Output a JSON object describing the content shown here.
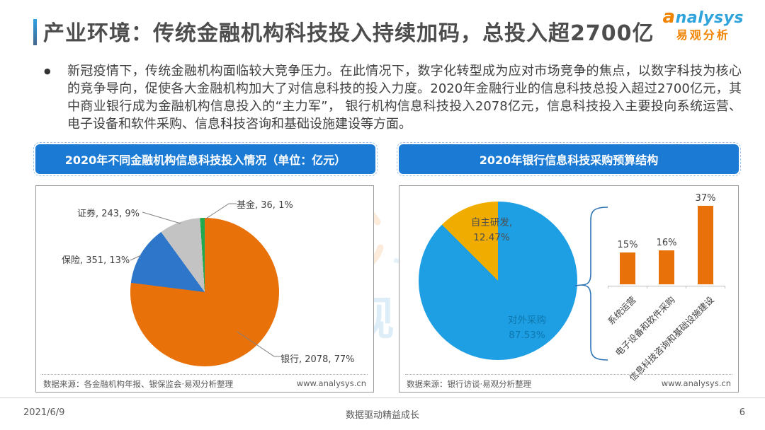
{
  "page": {
    "title": "产业环境：传统金融机构科技投入持续加码，总投入超2700亿",
    "bullet": "●",
    "paragraph": "新冠疫情下，传统金融机构面临较大竞争压力。在此情况下，数字化转型成为应对市场竞争的焦点，以数字科技为核心的竞争导向，促使各大金融机构加大了对信息科技的投入力度。2020年金融行业的信息科技总投入超过2700亿元，其中商业银行成为金融机构信息投入的“主力军”， 银行机构信息科技投入2078亿元，信息科技投入主要投向系统运营、电子设备和软件采购、信息科技咨询和基础设施建设等方面。",
    "logo": {
      "brand": "analysys",
      "brand_cn": "易观分析"
    },
    "watermarks": {
      "cn": "易观",
      "latin": "ysys"
    },
    "footer": {
      "date": "2021/6/9",
      "slogan": "数据驱动精益成长",
      "page_number": "6"
    }
  },
  "left_chart": {
    "header": "2020年不同金融机构信息科技投入情况（单位：亿元）",
    "source": "数据来源：各金融机构年报、银保监会·易观分析整理",
    "site": "www.analysys.cn"
  },
  "right_chart": {
    "header": "2020年银行信息科技采购预算结构",
    "source": "数据来源：银行访谈·易观分析整理",
    "site": "www.analysys.cn"
  },
  "colors": {
    "header_blue": "#1b7bd4",
    "brand_blue": "#2fa3dc",
    "brand_orange": "#f08300",
    "title_gray": "#4d4d4d"
  },
  "chart_data": [
    {
      "type": "pie",
      "title": "2020年不同金融机构信息科技投入情况",
      "unit": "亿元",
      "slices": [
        {
          "label": "银行",
          "value": 2078,
          "percent": 77,
          "color": "#e8710a",
          "annotation": "银行, 2078, 77%"
        },
        {
          "label": "保险",
          "value": 351,
          "percent": 13,
          "color": "#2d76c9",
          "annotation": "保险, 351, 13%"
        },
        {
          "label": "证券",
          "value": 243,
          "percent": 9,
          "color": "#c3c3c3",
          "annotation": "证券, 243, 9%"
        },
        {
          "label": "基金",
          "value": 36,
          "percent": 1,
          "color": "#21a94e",
          "annotation": "基金, 36, 1%"
        }
      ],
      "legend": "none",
      "source": "各金融机构年报、银保监会·易观分析整理"
    },
    {
      "type": "pie",
      "title": "2020年银行信息科技采购预算结构",
      "slices": [
        {
          "label": "对外采购",
          "percent": 87.53,
          "color": "#1e9ee3",
          "name_text": "对外采购",
          "pct_text": "87.53%"
        },
        {
          "label": "自主研发",
          "percent": 12.47,
          "color": "#f0ad00",
          "name_text": "自主研发,",
          "pct_text": "12.47%"
        }
      ],
      "legend": "none",
      "source": "银行访谈·易观分析整理"
    },
    {
      "type": "bar",
      "title": "对外采购预算构成",
      "categories": [
        "系统运营",
        "电子设备和软件采购",
        "信息科技咨询和基础设施建设"
      ],
      "values": [
        15,
        16,
        37
      ],
      "value_labels": [
        "15%",
        "16%",
        "37%"
      ],
      "unit": "%",
      "bar_color": "#e8710a",
      "ylim": [
        0,
        40
      ],
      "grid": false
    }
  ]
}
